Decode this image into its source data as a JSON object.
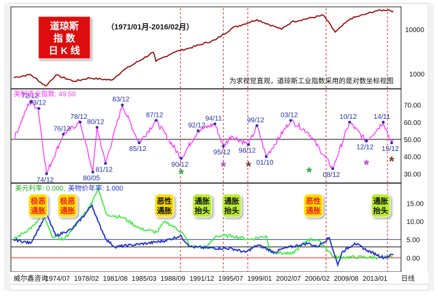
{
  "logo": {
    "line1": "道琼斯",
    "line2": "指  数",
    "line3": "日 K 线"
  },
  "period_label": "（1971/01月-2016/02月）",
  "note": "为求视觉直观，道琼斯工业指数采用的是对数坐标视图",
  "footer_brand": "威尔鑫咨询",
  "x_labels": [
    "1974/07",
    "1978/02",
    "1981/08",
    "1985/03",
    "1988/09",
    "1991/12",
    "1995/07",
    "1999/01",
    "2002/07",
    "2006/02",
    "2009/08",
    "2013/01"
  ],
  "footer_unit": "日线",
  "colors": {
    "dow": "#990000",
    "pmi": "#ff33ff",
    "usd_rate": "#33ee33",
    "cpi": "#2233cc",
    "marker_red": "#ee2222",
    "marker_green": "#22aa33",
    "marker_purple": "#bb44cc",
    "marker_brown": "#883322",
    "label_blue": "#2233aa",
    "badge_yellow": "#ffdd00",
    "badge_green": "#bbee33",
    "logo_red": "#dd1111"
  },
  "chart_data": [
    {
      "type": "line",
      "title": "道琼斯指数 日K线",
      "yscale": "log",
      "yticks": [
        1000,
        10000
      ],
      "ylim": [
        600,
        18000
      ],
      "series": [
        {
          "name": "道琼斯指数",
          "x": [
            1971,
            1973,
            1974.8,
            1976,
            1978.2,
            1980,
            1982.6,
            1984,
            1987.6,
            1987.9,
            1990,
            1992,
            1995,
            1997,
            1999.9,
            2002.8,
            2004,
            2007.8,
            2009.2,
            2011,
            2013,
            2014,
            2015.5,
            2016.1
          ],
          "values": [
            880,
            1000,
            600,
            980,
            740,
            860,
            780,
            1200,
            2700,
            1800,
            2700,
            3300,
            4700,
            8000,
            11500,
            7500,
            10400,
            14000,
            6600,
            12000,
            15000,
            17000,
            17800,
            16400
          ]
        }
      ]
    },
    {
      "type": "line",
      "title": "美制造业指数: 49.50",
      "yticks": [
        30,
        40,
        50,
        60,
        70
      ],
      "ylim": [
        27,
        77
      ],
      "series": [
        {
          "name": "美制造业指数",
          "x": [
            1971,
            1972.9,
            1973.9,
            1974.9,
            1976.9,
            1978.9,
            1980.4,
            1980.9,
            1981.9,
            1983.9,
            1985.9,
            1987.9,
            1990.9,
            1992.9,
            1994.9,
            1995.9,
            1996.9,
            1998.9,
            1999.9,
            2001,
            2003.9,
            2006,
            2008.9,
            2010.9,
            2012.9,
            2014.9,
            2015.9,
            2016.1
          ],
          "values": [
            50,
            72,
            68,
            30,
            53,
            60,
            31,
            57,
            36,
            70,
            48,
            61,
            39,
            55,
            59,
            46,
            52,
            47,
            58,
            40,
            61,
            54,
            33,
            60,
            49,
            60,
            48,
            49.5
          ]
        }
      ],
      "labels": [
        {
          "x": 1973.1,
          "y": 72,
          "text": "72/12"
        },
        {
          "x": 1974.0,
          "y": 68,
          "text": "73/12"
        },
        {
          "x": 1974.9,
          "y": 30,
          "text": "74/12"
        },
        {
          "x": 1976.9,
          "y": 53,
          "text": "76/12"
        },
        {
          "x": 1978.9,
          "y": 60,
          "text": "78/12"
        },
        {
          "x": 1980.9,
          "y": 57,
          "text": "80/12"
        },
        {
          "x": 1980.4,
          "y": 31,
          "text": "80/05"
        },
        {
          "x": 1981.9,
          "y": 36,
          "text": "81/12"
        },
        {
          "x": 1983.9,
          "y": 70,
          "text": "83/12"
        },
        {
          "x": 1985.9,
          "y": 48,
          "text": "85/12"
        },
        {
          "x": 1987.9,
          "y": 61,
          "text": "87/12"
        },
        {
          "x": 1990.9,
          "y": 39,
          "text": "90/12"
        },
        {
          "x": 1992.9,
          "y": 55,
          "text": "92/12"
        },
        {
          "x": 1994.9,
          "y": 59,
          "text": "94/11"
        },
        {
          "x": 1995.9,
          "y": 46,
          "text": "95/12"
        },
        {
          "x": 1998.9,
          "y": 47,
          "text": "98/12"
        },
        {
          "x": 1999.9,
          "y": 58,
          "text": "99/12"
        },
        {
          "x": 2001.0,
          "y": 40,
          "text": "01/10"
        },
        {
          "x": 2003.9,
          "y": 61,
          "text": "03/12"
        },
        {
          "x": 2008.9,
          "y": 33,
          "text": "08/12"
        },
        {
          "x": 2010.9,
          "y": 60,
          "text": "10/12"
        },
        {
          "x": 2012.9,
          "y": 49,
          "text": "12/12"
        },
        {
          "x": 2014.9,
          "y": 60,
          "text": "14/11"
        },
        {
          "x": 2015.9,
          "y": 48,
          "text": "15/12"
        }
      ]
    },
    {
      "type": "line",
      "title": "美元利率 / 美物价年率",
      "yticks": [
        0,
        5,
        10,
        15
      ],
      "ylim": [
        -2,
        19
      ],
      "series": [
        {
          "name": "美元利率: 0.000",
          "x": [
            1971,
            1973.5,
            1974.5,
            1975.5,
            1977,
            1978,
            1979,
            1980,
            1981,
            1982,
            1984,
            1986,
            1988,
            1989,
            1991,
            1992,
            1993,
            1994,
            1995,
            1997,
            1999,
            2001,
            2001.5,
            2002,
            2004,
            2006,
            2007,
            2008,
            2009,
            2015,
            2015.9,
            2016.1
          ],
          "values": [
            5,
            9,
            12,
            6,
            5,
            8,
            11,
            14,
            19,
            12,
            11,
            8,
            7,
            10,
            7,
            3,
            3,
            3,
            6,
            6,
            5,
            6,
            1.5,
            1.5,
            1,
            5,
            5,
            3,
            0.2,
            0.1,
            0.25,
            0
          ]
        },
        {
          "name": "美物价年率: 1.000",
          "x": [
            1971,
            1973,
            1974.9,
            1976,
            1977,
            1978,
            1979.5,
            1980.3,
            1981,
            1982,
            1983,
            1985,
            1987,
            1989,
            1990.8,
            1992,
            1994,
            1997,
            1998.5,
            2000,
            2002,
            2003,
            2005,
            2006,
            2007,
            2008.5,
            2009.5,
            2010,
            2011.5,
            2013,
            2015,
            2016.1
          ],
          "values": [
            5,
            4,
            12,
            6,
            7,
            8,
            12,
            14.5,
            10,
            5,
            3,
            3.5,
            4,
            4.7,
            6,
            3,
            2.7,
            2.5,
            1.5,
            3.5,
            1.5,
            2.5,
            3.5,
            4,
            3,
            5.5,
            -2,
            1.5,
            4,
            2,
            0,
            1
          ]
        }
      ],
      "badges": [
        "极恶通胀",
        "极恶通胀",
        "恶性通胀",
        "通胀抬头",
        "通胀抬头",
        "恶性通胀",
        "通胀抬头"
      ]
    }
  ]
}
